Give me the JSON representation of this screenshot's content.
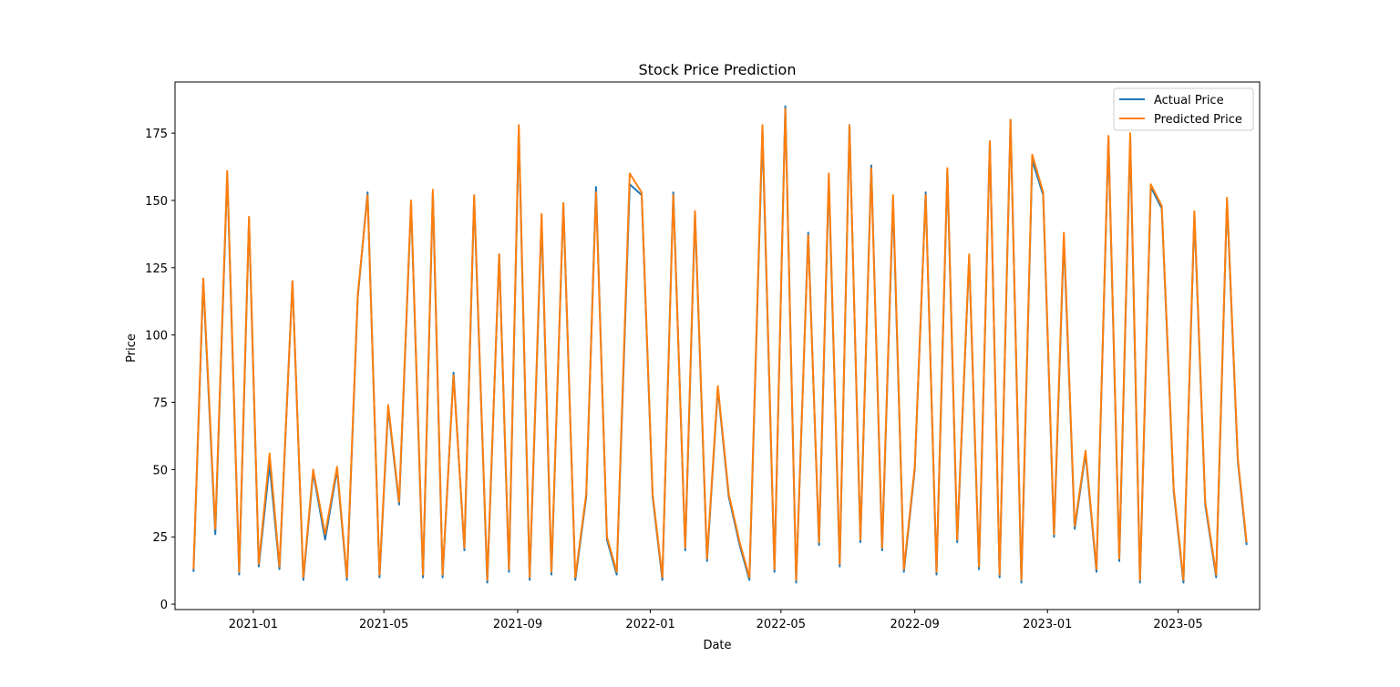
{
  "chart_data": {
    "type": "line",
    "title": "Stock Price Prediction",
    "xlabel": "Date",
    "ylabel": "Price",
    "xlim": [
      "2020-10-21",
      "2023-07-15"
    ],
    "ylim": [
      -2,
      194
    ],
    "x_ticks": [
      "2021-01",
      "2021-05",
      "2021-09",
      "2022-01",
      "2022-05",
      "2022-09",
      "2023-01",
      "2023-05"
    ],
    "y_ticks": [
      0,
      25,
      50,
      75,
      100,
      125,
      150,
      175
    ],
    "grid": false,
    "legend_position": "top-right",
    "x": [
      "2020-11-07",
      "2020-11-16",
      "2020-11-27",
      "2020-12-08",
      "2020-12-19",
      "2020-12-28",
      "2021-01-06",
      "2021-01-16",
      "2021-01-25",
      "2021-02-06",
      "2021-02-16",
      "2021-02-25",
      "2021-03-08",
      "2021-03-19",
      "2021-03-28",
      "2021-04-07",
      "2021-04-16",
      "2021-04-27",
      "2021-05-05",
      "2021-05-15",
      "2021-05-26",
      "2021-06-06",
      "2021-06-15",
      "2021-06-24",
      "2021-07-04",
      "2021-07-14",
      "2021-07-23",
      "2021-08-04",
      "2021-08-15",
      "2021-08-24",
      "2021-09-02",
      "2021-09-12",
      "2021-09-23",
      "2021-10-02",
      "2021-10-13",
      "2021-10-24",
      "2021-11-03",
      "2021-11-12",
      "2021-11-22",
      "2021-12-01",
      "2021-12-13",
      "2021-12-24",
      "2022-01-03",
      "2022-01-12",
      "2022-01-22",
      "2022-02-02",
      "2022-02-11",
      "2022-02-22",
      "2022-03-04",
      "2022-03-14",
      "2022-03-24",
      "2022-04-02",
      "2022-04-14",
      "2022-04-25",
      "2022-05-05",
      "2022-05-15",
      "2022-05-26",
      "2022-06-05",
      "2022-06-14",
      "2022-06-24",
      "2022-07-03",
      "2022-07-13",
      "2022-07-23",
      "2022-08-02",
      "2022-08-12",
      "2022-08-22",
      "2022-09-01",
      "2022-09-11",
      "2022-09-21",
      "2022-10-01",
      "2022-10-10",
      "2022-10-21",
      "2022-10-30",
      "2022-11-09",
      "2022-11-18",
      "2022-11-28",
      "2022-12-08",
      "2022-12-18",
      "2022-12-28",
      "2023-01-07",
      "2023-01-16",
      "2023-01-26",
      "2023-02-05",
      "2023-02-15",
      "2023-02-26",
      "2023-03-08",
      "2023-03-18",
      "2023-03-27",
      "2023-04-06",
      "2023-04-16",
      "2023-04-27",
      "2023-05-06",
      "2023-05-16",
      "2023-05-26",
      "2023-06-05",
      "2023-06-15",
      "2023-06-25",
      "2023-07-03"
    ],
    "series": [
      {
        "name": "Actual Price",
        "color": "#1f77b4",
        "values": [
          12,
          120,
          26,
          160,
          11,
          143,
          14,
          52,
          13,
          120,
          9,
          49,
          24,
          50,
          9,
          114,
          153,
          10,
          73,
          37,
          149,
          10,
          153,
          10,
          86,
          20,
          151,
          8,
          130,
          12,
          176,
          9,
          143,
          11,
          149,
          9,
          40,
          155,
          24,
          11,
          156,
          152,
          40,
          9,
          153,
          20,
          145,
          16,
          80,
          40,
          22,
          9,
          176,
          12,
          185,
          8,
          138,
          22,
          158,
          14,
          178,
          23,
          163,
          20,
          150,
          12,
          50,
          153,
          11,
          161,
          23,
          129,
          13,
          172,
          10,
          180,
          8,
          165,
          152,
          25,
          136,
          28,
          56,
          12,
          173,
          16,
          173,
          8,
          155,
          147,
          42,
          8,
          145,
          37,
          10,
          150,
          53,
          22
        ]
      },
      {
        "name": "Predicted Price",
        "color": "#ff7f0e",
        "values": [
          13,
          121,
          28,
          161,
          12,
          144,
          15,
          56,
          14,
          120,
          10,
          50,
          26,
          51,
          10,
          115,
          152,
          11,
          74,
          38,
          150,
          11,
          154,
          11,
          85,
          21,
          152,
          9,
          130,
          13,
          178,
          10,
          145,
          12,
          149,
          10,
          41,
          153,
          25,
          12,
          160,
          153,
          41,
          10,
          152,
          21,
          146,
          17,
          81,
          41,
          23,
          10,
          178,
          13,
          184,
          9,
          137,
          23,
          160,
          15,
          178,
          24,
          162,
          21,
          152,
          13,
          51,
          152,
          12,
          162,
          24,
          130,
          14,
          172,
          11,
          180,
          9,
          167,
          153,
          26,
          138,
          29,
          57,
          13,
          174,
          17,
          175,
          9,
          156,
          148,
          43,
          9,
          146,
          38,
          11,
          151,
          54,
          23
        ]
      }
    ]
  }
}
